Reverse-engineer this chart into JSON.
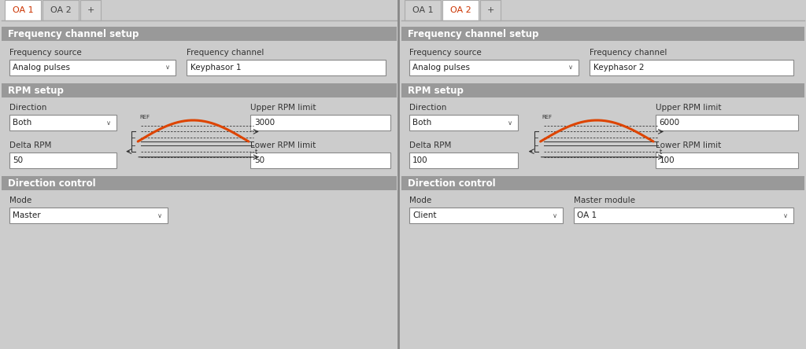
{
  "bg_color": "#cccccc",
  "white": "#ffffff",
  "section_header_bg": "#999999",
  "section_header_text": "#ffffff",
  "tab_active_text": "#cc3300",
  "tab_inactive_text": "#444444",
  "tab_bg_active": "#ffffff",
  "tab_bg_inactive": "#d0d0d0",
  "label_color": "#333333",
  "value_color": "#222222",
  "orange": "#dd4400",
  "line_color": "#555555",
  "panels": [
    {
      "tabs": [
        "OA 1",
        "OA 2",
        "+"
      ],
      "active_tab": 0,
      "freq_source": "Analog pulses",
      "freq_channel": "Keyphasor 1",
      "direction": "Both",
      "upper_rpm": "3000",
      "delta_rpm": "50",
      "lower_rpm": "50",
      "mode": "Master",
      "master_module": null
    },
    {
      "tabs": [
        "OA 1",
        "OA 2",
        "+"
      ],
      "active_tab": 1,
      "freq_source": "Analog pulses",
      "freq_channel": "Keyphasor 2",
      "direction": "Both",
      "upper_rpm": "6000",
      "delta_rpm": "100",
      "lower_rpm": "100",
      "mode": "Client",
      "master_module": "OA 1"
    }
  ]
}
